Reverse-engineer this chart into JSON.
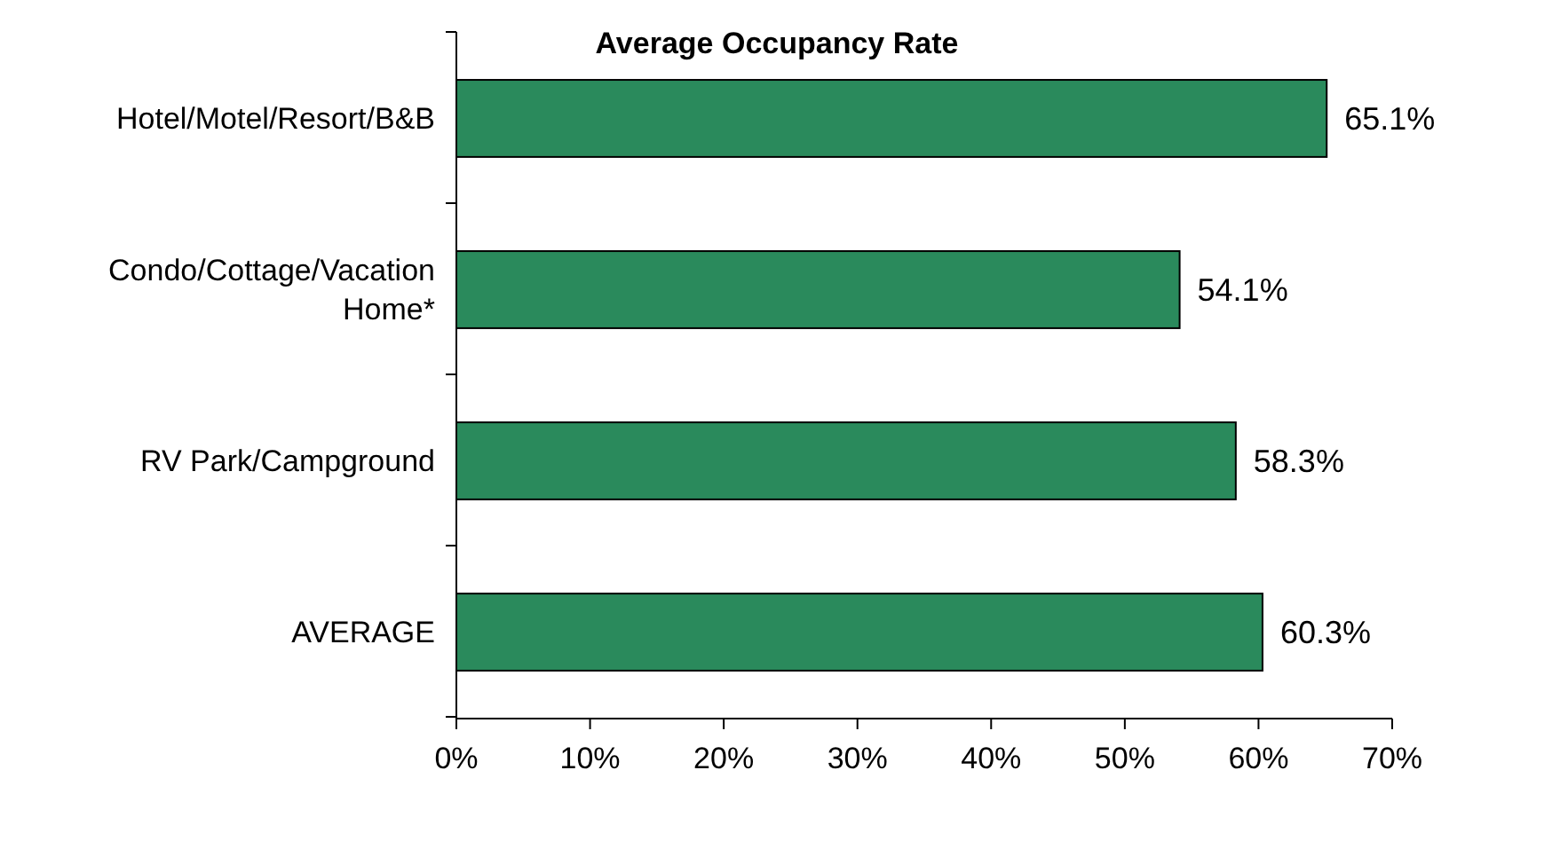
{
  "chart_data": {
    "type": "bar",
    "orientation": "horizontal",
    "title": "Average Occupancy Rate",
    "categories": [
      "Hotel/Motel/Resort/B&B",
      "Condo/Cottage/Vacation Home*",
      "RV Park/Campground",
      "AVERAGE"
    ],
    "values": [
      65.1,
      54.1,
      58.3,
      60.3
    ],
    "value_labels": [
      "65.1%",
      "54.1%",
      "58.3%",
      "60.3%"
    ],
    "color": "#2a8a5c",
    "xlim": [
      0,
      70
    ],
    "xticks": [
      {
        "value": 0,
        "label": "0%"
      },
      {
        "value": 10,
        "label": "10%"
      },
      {
        "value": 20,
        "label": "20%"
      },
      {
        "value": 30,
        "label": "30%"
      },
      {
        "value": 40,
        "label": "40%"
      },
      {
        "value": 50,
        "label": "50%"
      },
      {
        "value": 60,
        "label": "60%"
      },
      {
        "value": 70,
        "label": "70%"
      }
    ],
    "grid": false
  }
}
